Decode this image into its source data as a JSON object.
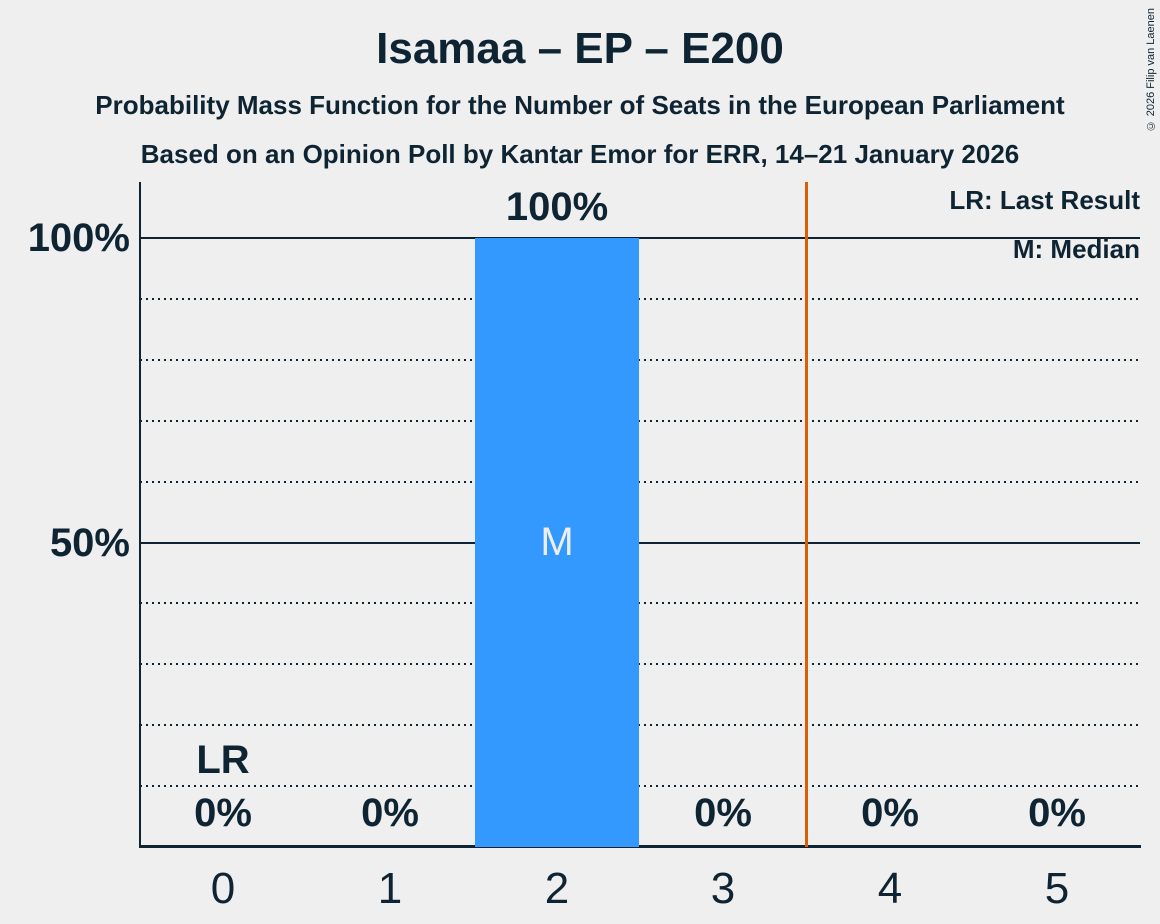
{
  "header": {
    "title": "Isamaa – EP – E200",
    "subtitle_line1": "Probability Mass Function for the Number of Seats in the European Parliament",
    "subtitle_line2": "Based on an Opinion Poll by Kantar Emor for ERR, 14–21 January 2026"
  },
  "copyright": "© 2026 Filip van Laenen",
  "legend": {
    "last_result": "LR: Last Result",
    "median": "M: Median"
  },
  "colors": {
    "background": "#EFEFEF",
    "text": "#0E2433",
    "bar": "#3399FF",
    "bar_label": "#EEEEEE",
    "last_result_line": "#D95F02"
  },
  "chart_data": {
    "type": "bar",
    "title": "Isamaa – EP – E200",
    "categories": [
      "0",
      "1",
      "2",
      "3",
      "4",
      "5"
    ],
    "values": [
      0,
      0,
      100,
      0,
      0,
      0
    ],
    "value_labels": [
      "0%",
      "0%",
      "100%",
      "0%",
      "0%",
      "0%"
    ],
    "xlabel": "",
    "ylabel": "",
    "ylim": [
      0,
      109
    ],
    "y_ticks": [
      {
        "value": 100,
        "label": "100%"
      },
      {
        "value": 50,
        "label": "50%"
      }
    ],
    "gridlines": {
      "solid_percents": [
        100,
        50
      ],
      "dotted_percents": [
        90,
        80,
        70,
        60,
        40,
        30,
        20,
        10
      ]
    },
    "median": {
      "category": "2",
      "marker": "M"
    },
    "last_result": {
      "label": "LR",
      "label_category": "0",
      "line_position": 3.5
    },
    "legend_position": "top-right",
    "grid": "horizontal"
  }
}
